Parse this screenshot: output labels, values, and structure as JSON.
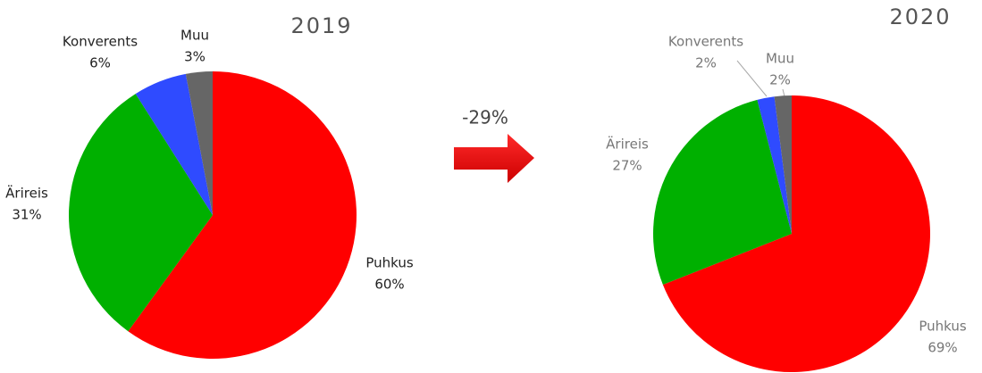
{
  "annotation": "-29%",
  "chart_data": [
    {
      "type": "pie",
      "title": "2019",
      "categories": [
        "Puhkus",
        "Ärireis",
        "Konverents",
        "Muu"
      ],
      "values": [
        60,
        31,
        6,
        3
      ],
      "value_labels": [
        "60%",
        "31%",
        "6%",
        "3%"
      ],
      "colors": [
        "#ff0000",
        "#00b000",
        "#2f4bff",
        "#666666"
      ]
    },
    {
      "type": "pie",
      "title": "2020",
      "categories": [
        "Puhkus",
        "Ärireis",
        "Konverents",
        "Muu"
      ],
      "values": [
        69,
        27,
        2,
        2
      ],
      "value_labels": [
        "69%",
        "27%",
        "2%",
        "2%"
      ],
      "colors": [
        "#ff0000",
        "#00b000",
        "#2f4bff",
        "#666666"
      ]
    }
  ]
}
